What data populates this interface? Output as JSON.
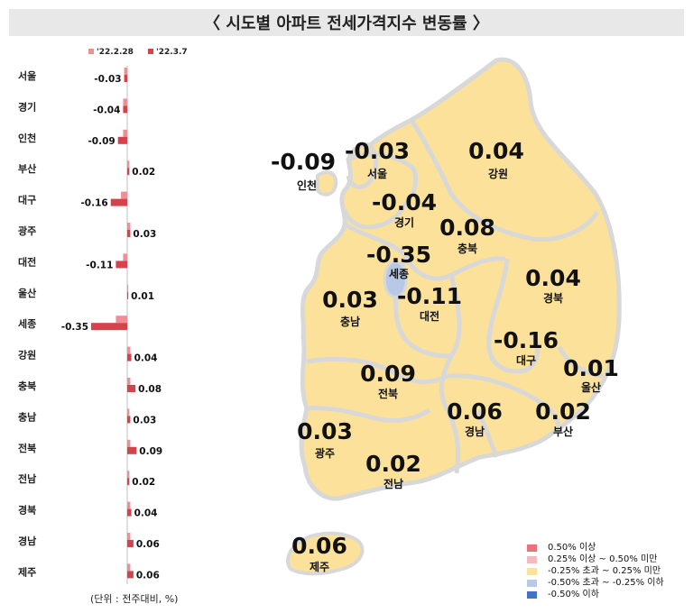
{
  "title": "〈 시도별 아파트 전세가격지수 변동률 〉",
  "unit_note": "(단위 : 전주대비, %)",
  "colors": {
    "prev_week": "#f08e94",
    "this_week": "#d6424b",
    "map_fill_neutral": "#fbe199",
    "map_fill_low": "#b7c9e6",
    "map_border": "#d8d8d8"
  },
  "chart_data": {
    "type": "bar",
    "orientation": "horizontal",
    "categories": [
      "서울",
      "경기",
      "인천",
      "부산",
      "대구",
      "광주",
      "대전",
      "울산",
      "세종",
      "강원",
      "충북",
      "충남",
      "전북",
      "전남",
      "경북",
      "경남",
      "제주"
    ],
    "series": [
      {
        "name": "'22.2.28",
        "values": [
          -0.03,
          -0.04,
          -0.04,
          0.02,
          -0.06,
          0.03,
          -0.04,
          0.01,
          -0.11,
          0.03,
          0.03,
          0.02,
          0.03,
          0.02,
          0.03,
          0.03,
          0.03
        ]
      },
      {
        "name": "'22.3.7",
        "values": [
          -0.03,
          -0.04,
          -0.09,
          0.02,
          -0.16,
          0.03,
          -0.11,
          0.01,
          -0.35,
          0.04,
          0.08,
          0.03,
          0.09,
          0.02,
          0.04,
          0.06,
          0.06
        ]
      }
    ],
    "data_labels": [
      "-0.03",
      "-0.04",
      "-0.09",
      "0.02",
      "-0.16",
      "0.03",
      "-0.11",
      "0.01",
      "-0.35",
      "0.04",
      "0.08",
      "0.03",
      "0.09",
      "0.02",
      "0.04",
      "0.06",
      "0.06"
    ],
    "xlim": [
      -0.4,
      0.4
    ]
  },
  "map": {
    "regions": [
      {
        "name": "인천",
        "value": "-0.09",
        "v": -0.09
      },
      {
        "name": "서울",
        "value": "-0.03",
        "v": -0.03
      },
      {
        "name": "강원",
        "value": "0.04",
        "v": 0.04
      },
      {
        "name": "경기",
        "value": "-0.04",
        "v": -0.04
      },
      {
        "name": "충북",
        "value": "0.08",
        "v": 0.08
      },
      {
        "name": "세종",
        "value": "-0.35",
        "v": -0.35
      },
      {
        "name": "경북",
        "value": "0.04",
        "v": 0.04
      },
      {
        "name": "충남",
        "value": "0.03",
        "v": 0.03
      },
      {
        "name": "대전",
        "value": "-0.11",
        "v": -0.11
      },
      {
        "name": "대구",
        "value": "-0.16",
        "v": -0.16
      },
      {
        "name": "울산",
        "value": "0.01",
        "v": 0.01
      },
      {
        "name": "전북",
        "value": "0.09",
        "v": 0.09
      },
      {
        "name": "경남",
        "value": "0.06",
        "v": 0.06
      },
      {
        "name": "부산",
        "value": "0.02",
        "v": 0.02
      },
      {
        "name": "광주",
        "value": "0.03",
        "v": 0.03
      },
      {
        "name": "전남",
        "value": "0.02",
        "v": 0.02
      },
      {
        "name": "제주",
        "value": "0.06",
        "v": 0.06
      }
    ],
    "legend": [
      {
        "label": "0.50% 이상",
        "color": "#e8737a"
      },
      {
        "label": "0.25% 이상 ~ 0.50% 미만",
        "color": "#f5b9bc"
      },
      {
        "label": "-0.25% 초과 ~ 0.25% 미만",
        "color": "#fbe199"
      },
      {
        "label": "-0.50% 초과 ~ -0.25% 이하",
        "color": "#b7c9e6"
      },
      {
        "label": "-0.50% 이하",
        "color": "#4472c4"
      }
    ]
  }
}
